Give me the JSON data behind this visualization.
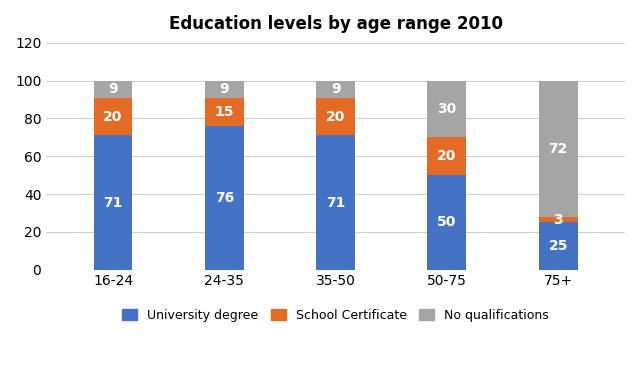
{
  "title": "Education levels by age range 2010",
  "categories": [
    "16-24",
    "24-35",
    "35-50",
    "50-75",
    "75+"
  ],
  "university_degree": [
    71,
    76,
    71,
    50,
    25
  ],
  "school_certificate": [
    20,
    15,
    20,
    20,
    3
  ],
  "no_qualifications": [
    9,
    9,
    9,
    30,
    72
  ],
  "colors": {
    "university_degree": "#4472C4",
    "school_certificate": "#E36B25",
    "no_qualifications": "#A5A5A5"
  },
  "legend_labels": [
    "University degree",
    "School Certificate",
    "No qualifications"
  ],
  "ylim": [
    0,
    120
  ],
  "yticks": [
    0,
    20,
    40,
    60,
    80,
    100,
    120
  ],
  "bar_width": 0.35,
  "label_fontsize": 10,
  "title_fontsize": 12,
  "fig_width": 6.4,
  "fig_height": 3.79
}
